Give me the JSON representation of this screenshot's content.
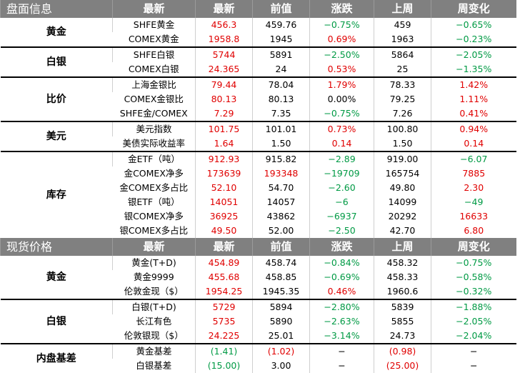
{
  "headers": [
    "盘面信息",
    "最新",
    "最新",
    "前值",
    "涨跌",
    "上周",
    "周变化"
  ],
  "headers2": [
    "现货价格",
    "最新",
    "最新",
    "前值",
    "涨跌",
    "上周",
    "周变化"
  ],
  "groups": [
    "黄金",
    "白银",
    "比价",
    "美元",
    "库存",
    "黄金",
    "白银",
    "内盘基差"
  ],
  "rows": [
    {
      "label": "SHFE黄金",
      "cur": "456.3",
      "prev": "459.76",
      "chg": "−0.75%",
      "wk": "459",
      "wchg": "−0.65%"
    },
    {
      "label": "COMEX黄金",
      "cur": "1958.8",
      "prev": "1945",
      "chg": "0.69%",
      "wk": "1963",
      "wchg": "−0.23%"
    },
    {
      "label": "SHFE白银",
      "cur": "5744",
      "prev": "5891",
      "chg": "−2.50%",
      "wk": "5864",
      "wchg": "−2.05%"
    },
    {
      "label": "COMEX白银",
      "cur": "24.365",
      "prev": "24",
      "chg": "0.53%",
      "wk": "25",
      "wchg": "−1.35%"
    },
    {
      "label": "上海金银比",
      "cur": "79.44",
      "prev": "78.04",
      "chg": "1.79%",
      "wk": "78.33",
      "wchg": "1.42%"
    },
    {
      "label": "COMEX金银比",
      "cur": "80.13",
      "prev": "80.13",
      "chg": "0.00%",
      "wk": "79.25",
      "wchg": "1.11%"
    },
    {
      "label": "SHFE金/COMEX",
      "cur": "7.29",
      "prev": "7.35",
      "chg": "−0.75%",
      "wk": "7.26",
      "wchg": "0.41%"
    },
    {
      "label": "美元指数",
      "cur": "101.75",
      "prev": "101.01",
      "chg": "0.73%",
      "wk": "100.80",
      "wchg": "0.94%"
    },
    {
      "label": "美债实际收益率",
      "cur": "1.64",
      "prev": "1.50",
      "chg": "0.14",
      "wk": "1.50",
      "wchg": "0.14"
    },
    {
      "label": "金ETF（吨）",
      "cur": "912.93",
      "prev": "915.82",
      "chg": "−2.89",
      "wk": "919.00",
      "wchg": "−6.07"
    },
    {
      "label": "金COMEX净多",
      "cur": "173639",
      "prev": "193348",
      "chg": "−19709",
      "wk": "165754",
      "wchg": "7885"
    },
    {
      "label": "金COMEX多占比",
      "cur": "52.10",
      "prev": "54.70",
      "chg": "−2.60",
      "wk": "49.80",
      "wchg": "2.30"
    },
    {
      "label": "银ETF（吨）",
      "cur": "14051",
      "prev": "14057",
      "chg": "−6",
      "wk": "14099",
      "wchg": "−49"
    },
    {
      "label": "银COMEX净多",
      "cur": "36925",
      "prev": "43862",
      "chg": "−6937",
      "wk": "20292",
      "wchg": "16633"
    },
    {
      "label": "银COMEX多占比",
      "cur": "49.50",
      "prev": "52.00",
      "chg": "−2.50",
      "wk": "42.70",
      "wchg": "6.80"
    },
    {
      "label": "黄金(T+D)",
      "cur": "454.89",
      "prev": "458.74",
      "chg": "−0.84%",
      "wk": "458.32",
      "wchg": "−0.75%"
    },
    {
      "label": "黄金9999",
      "cur": "455.68",
      "prev": "458.85",
      "chg": "−0.69%",
      "wk": "458.33",
      "wchg": "−0.58%"
    },
    {
      "label": "伦敦金现（$）",
      "cur": "1954.25",
      "prev": "1945.35",
      "chg": "0.46%",
      "wk": "1960.6",
      "wchg": "−0.32%"
    },
    {
      "label": "白银(T+D)",
      "cur": "5729",
      "prev": "5894",
      "chg": "−2.80%",
      "wk": "5839",
      "wchg": "−1.88%"
    },
    {
      "label": "长江有色",
      "cur": "5735",
      "prev": "5890",
      "chg": "−2.63%",
      "wk": "5855",
      "wchg": "−2.05%"
    },
    {
      "label": "伦敦银现（$）",
      "cur": "24.225",
      "prev": "25.01",
      "chg": "−3.14%",
      "wk": "24.73",
      "wchg": "−2.04%"
    },
    {
      "label": "黄金基差",
      "cur": "(1.41)",
      "prev": "(1.02)",
      "chg": "−",
      "wk": "(0.98)",
      "wchg": "−"
    },
    {
      "label": "白银基差",
      "cur": "(15.00)",
      "prev": "3.00",
      "chg": "−",
      "wk": "(25.00)",
      "wchg": "−"
    }
  ],
  "colors": {
    "up": "#e00000",
    "down": "#009a44",
    "header_bg": "#808080"
  }
}
